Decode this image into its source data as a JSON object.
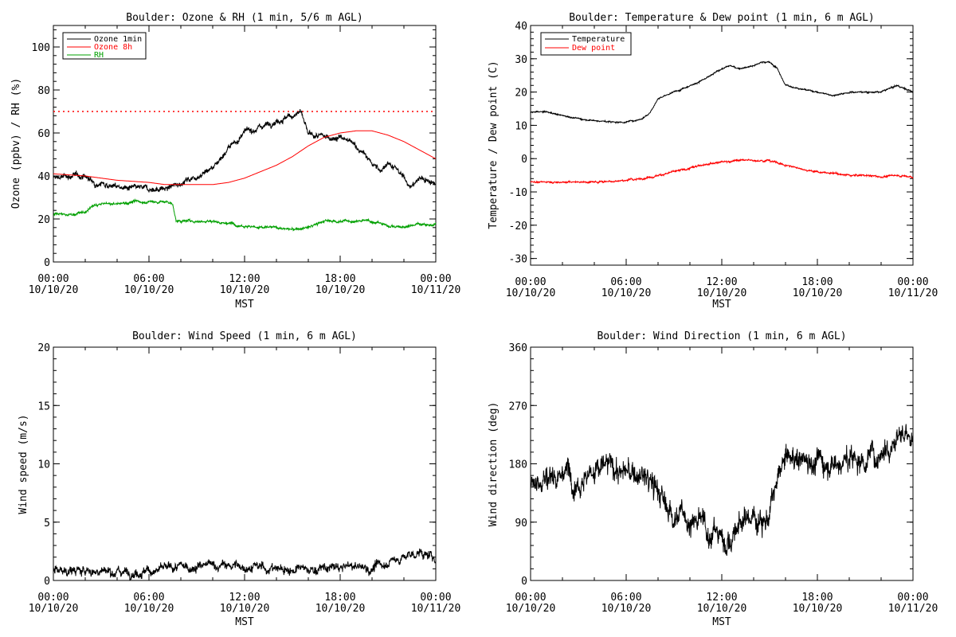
{
  "time_axis": {
    "tick_labels": [
      {
        "time": "00:00",
        "date": "10/10/20"
      },
      {
        "time": "06:00",
        "date": "10/10/20"
      },
      {
        "time": "12:00",
        "date": "10/10/20"
      },
      {
        "time": "18:00",
        "date": "10/10/20"
      },
      {
        "time": "00:00",
        "date": "10/11/20"
      }
    ]
  },
  "chart_data": [
    {
      "id": "ozone_rh",
      "type": "line",
      "title": "Boulder: Ozone & RH (1 min, 5/6 m AGL)",
      "xlabel": "MST",
      "ylabel": "Ozone (ppbv) / RH (%)",
      "xlim_hours": [
        0,
        24
      ],
      "ylim": [
        0,
        110
      ],
      "yticks": [
        0,
        20,
        40,
        60,
        80,
        100
      ],
      "reference_line": {
        "y": 70,
        "color": "#ff0000",
        "style": "dotted"
      },
      "legend_position": "top-left",
      "series": [
        {
          "name": "Ozone 1min",
          "color": "#000000",
          "noise": 1.5,
          "x": [
            0,
            1,
            2,
            2.5,
            3,
            3.5,
            4,
            5,
            6,
            7,
            7.5,
            8,
            9,
            10,
            11,
            12,
            13,
            14,
            15,
            15.5,
            16,
            17,
            18,
            19,
            20,
            20.5,
            21,
            22,
            22.5,
            23,
            24
          ],
          "y": [
            39,
            40,
            40,
            37,
            37,
            36,
            35,
            34,
            34,
            34,
            35,
            37,
            40,
            44,
            53,
            60,
            63,
            66,
            68,
            70,
            59,
            58,
            58,
            54,
            46,
            42,
            47,
            39,
            35,
            39,
            37
          ]
        },
        {
          "name": "Ozone 8h",
          "color": "#ff0000",
          "noise": 0,
          "x": [
            0,
            2,
            4,
            6,
            7,
            8,
            9,
            10,
            11,
            12,
            13,
            14,
            15,
            16,
            17,
            18,
            19,
            20,
            21,
            22,
            23,
            24
          ],
          "y": [
            41,
            40,
            38,
            37,
            36,
            36,
            36,
            36,
            37,
            39,
            42,
            45,
            49,
            54,
            58,
            60,
            61,
            61,
            59,
            56,
            52,
            48
          ]
        },
        {
          "name": "RH",
          "color": "#00a000",
          "noise": 0.7,
          "x": [
            0,
            1,
            2,
            2.5,
            3,
            4,
            5,
            6,
            7,
            7.5,
            7.7,
            8,
            9,
            10,
            11,
            12,
            13,
            14,
            15,
            16,
            17,
            18,
            19,
            20,
            21,
            22,
            23,
            24
          ],
          "y": [
            22,
            22,
            23,
            26,
            27,
            27,
            28,
            28,
            28,
            27,
            19,
            19,
            19,
            19,
            18,
            17,
            16,
            16,
            15,
            16,
            19,
            19,
            19,
            19,
            17,
            16,
            18,
            17
          ]
        }
      ]
    },
    {
      "id": "temp_dew",
      "type": "line",
      "title": "Boulder: Temperature & Dew point (1 min, 6 m AGL)",
      "xlabel": "MST",
      "ylabel": "Temperature / Dew point (C)",
      "xlim_hours": [
        0,
        24
      ],
      "ylim": [
        -32,
        40
      ],
      "yticks": [
        -30,
        -20,
        -10,
        0,
        10,
        20,
        30,
        40
      ],
      "legend_position": "top-left",
      "series": [
        {
          "name": "Temperature",
          "color": "#000000",
          "noise": 0.25,
          "x": [
            0,
            1,
            2,
            3,
            4,
            5,
            6,
            7,
            7.5,
            8,
            9,
            10,
            11,
            12,
            12.5,
            13,
            14,
            14.5,
            15,
            15.5,
            16,
            17,
            18,
            19,
            20,
            21,
            22,
            23,
            24
          ],
          "y": [
            14,
            14,
            13,
            12,
            11.5,
            11,
            11,
            12,
            14,
            18,
            20,
            22,
            24,
            27,
            28,
            27,
            28,
            29,
            29,
            27,
            22,
            21,
            20,
            19,
            20,
            20,
            20,
            22,
            20
          ]
        },
        {
          "name": "Dew point",
          "color": "#ff0000",
          "noise": 0.3,
          "x": [
            0,
            2,
            4,
            6,
            7,
            8,
            9,
            10,
            11,
            12,
            13,
            14,
            15,
            16,
            17,
            18,
            19,
            20,
            21,
            22,
            23,
            24
          ],
          "y": [
            -7,
            -7,
            -7,
            -6.5,
            -6,
            -5,
            -4,
            -3,
            -1.5,
            -1,
            -0.5,
            -0.5,
            -0.5,
            -2,
            -3,
            -4,
            -4.5,
            -5,
            -5,
            -5.5,
            -5,
            -5.5
          ]
        }
      ]
    },
    {
      "id": "wind_speed",
      "type": "line",
      "title": "Boulder: Wind Speed (1 min, 6 m AGL)",
      "xlabel": "MST",
      "ylabel": "Wind speed (m/s)",
      "xlim_hours": [
        0,
        24
      ],
      "ylim": [
        0,
        20
      ],
      "yticks": [
        0,
        5,
        10,
        15,
        20
      ],
      "series": [
        {
          "color": "#000000",
          "noise": 0.45,
          "clip_min": 0,
          "x": [
            0,
            2,
            4,
            6,
            8,
            10,
            12,
            14,
            16,
            18,
            19,
            20,
            21,
            22,
            23,
            24
          ],
          "y": [
            0.9,
            0.8,
            0.8,
            0.8,
            1.1,
            1.3,
            1.2,
            1.0,
            0.9,
            1.1,
            1.2,
            1.0,
            1.6,
            2.0,
            2.4,
            1.8
          ]
        }
      ]
    },
    {
      "id": "wind_dir",
      "type": "line",
      "title": "Boulder: Wind Direction (1 min, 6 m AGL)",
      "xlabel": "MST",
      "ylabel": "Wind direction (deg)",
      "xlim_hours": [
        0,
        24
      ],
      "ylim": [
        0,
        360
      ],
      "yticks": [
        0,
        90,
        180,
        270,
        360
      ],
      "series": [
        {
          "color": "#000000",
          "noise": 22,
          "clip_min": 0,
          "clip_max": 360,
          "x": [
            0,
            1,
            2,
            3,
            4,
            5,
            6,
            7,
            8,
            8.5,
            9,
            10,
            11,
            12,
            12.5,
            13,
            13.5,
            14,
            15,
            15.5,
            16,
            17,
            18,
            19,
            20,
            21,
            22,
            23,
            24
          ],
          "y": [
            150,
            160,
            170,
            160,
            170,
            175,
            165,
            160,
            140,
            110,
            105,
            95,
            80,
            70,
            60,
            80,
            95,
            100,
            100,
            150,
            185,
            190,
            185,
            185,
            185,
            190,
            200,
            230,
            215
          ]
        }
      ]
    }
  ]
}
